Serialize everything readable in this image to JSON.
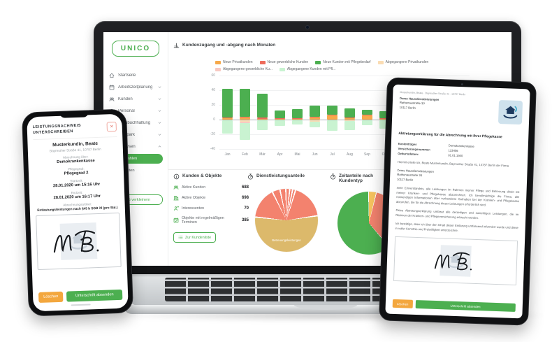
{
  "colors": {
    "green": "#4CAF50",
    "orange": "#F6A94B",
    "salmon": "#EE6B5B",
    "light_orange": "#FADCB3",
    "light_pink": "#F8C9C2",
    "light_green": "#C9F3D1",
    "tan": "#DCB96B",
    "pie_salmon": "#F3826E",
    "pie_orange": "#F6C35F",
    "amber": "#F3A73E"
  },
  "laptop": {
    "logo": "UNICO",
    "sidebar": {
      "items": [
        {
          "label": "Startseite",
          "icon": "home",
          "chevron": ""
        },
        {
          "label": "Arbeitszeitplanung",
          "icon": "calendar",
          "chevron": "down"
        },
        {
          "label": "Kunden",
          "icon": "users",
          "chevron": "down"
        },
        {
          "label": "Personal",
          "icon": "person",
          "chevron": "down"
        },
        {
          "label": "Lohnbuchhaltung",
          "icon": "calculator",
          "chevron": "down"
        },
        {
          "label": "Fuhrpark",
          "icon": "truck",
          "chevron": "down"
        },
        {
          "label": "Analysen",
          "icon": "chart",
          "chevron": "up"
        }
      ],
      "active_subitem": "Kundenzahlen",
      "second_subitem": "Fahrtkosten",
      "collapse_button": "Menü verkleinern"
    },
    "chart_header": "Kundenzugang und -abgang nach Monaten",
    "stats": {
      "title": "Kunden & Objekte",
      "rows": [
        {
          "icon": "users",
          "label": "Aktive Kunden",
          "value": "688"
        },
        {
          "icon": "building",
          "label": "Aktive Objekte",
          "value": "698"
        },
        {
          "icon": "person-plus",
          "label": "Interessenten",
          "value": "70"
        },
        {
          "icon": "calendar-check",
          "label": "Objekte mit regelmäßigen Terminen",
          "value": "385"
        }
      ],
      "button": "Zur Kundenliste"
    }
  },
  "chart_data": [
    {
      "type": "bar",
      "title": "Kundenzugang und -abgang nach Monaten",
      "categories": [
        "Jan",
        "Feb",
        "Mär",
        "Apr",
        "Mai",
        "Jun",
        "Jul",
        "Aug",
        "Sep",
        "Okt",
        "Nov",
        "Dez"
      ],
      "series": [
        {
          "name": "Neue Privatkunden",
          "color": "#F6A94B",
          "values": [
            2,
            3,
            1,
            1,
            1,
            3,
            6,
            2,
            6,
            1,
            1,
            1
          ]
        },
        {
          "name": "Neue gewerbliche Kunden",
          "color": "#EE6B5B",
          "values": [
            1,
            1,
            2,
            1,
            1,
            1,
            1,
            1,
            1,
            1,
            1,
            0
          ]
        },
        {
          "name": "Neue Kunden mit Pflegebedarf",
          "color": "#4CAF50",
          "values": [
            39,
            38,
            32,
            10,
            12,
            15,
            12,
            12,
            6,
            9,
            7,
            7
          ]
        },
        {
          "name": "Abgegangene Privatkunden",
          "color": "#FADCB3",
          "values": [
            0,
            -2,
            0,
            0,
            0,
            -2,
            0,
            -1,
            0,
            0,
            0,
            0
          ]
        },
        {
          "name": "Abgegangene gewerbliche Ku...",
          "color": "#F8C9C2",
          "values": [
            0,
            -2,
            0,
            0,
            0,
            0,
            0,
            0,
            0,
            0,
            0,
            0
          ]
        },
        {
          "name": "Abgegangene Kunden mit Pfl...",
          "color": "#C9F3D1",
          "values": [
            -18,
            -23,
            -13,
            -8,
            -6,
            -8,
            -14,
            -12,
            -7,
            -11,
            -6,
            -5
          ]
        }
      ],
      "ylim": [
        -40,
        60
      ],
      "yticks": [
        60,
        40,
        20,
        0,
        -20,
        -40
      ],
      "grid": true,
      "legend_position": "top"
    },
    {
      "type": "pie",
      "title": "Dienstleistungsanteile",
      "slices": [
        {
          "label": "",
          "value": 2,
          "color": "#F3826E"
        },
        {
          "label": "",
          "value": 1.5,
          "color": "#F3826E"
        },
        {
          "label": "",
          "value": 1.5,
          "color": "#F3826E"
        },
        {
          "label": "",
          "value": 18,
          "color": "#F3826E"
        },
        {
          "label": "Betreuungsleistungen",
          "value": 54,
          "color": "#DCB96B"
        },
        {
          "label": "",
          "value": 16,
          "color": "#F3826E"
        },
        {
          "label": "",
          "value": 4,
          "color": "#F3826E"
        },
        {
          "label": "",
          "value": 3,
          "color": "#F3826E"
        }
      ]
    },
    {
      "type": "pie",
      "title": "Zeitanteile nach Kundentyp",
      "slices": [
        {
          "label": "",
          "value": 4,
          "color": "#F6C35F"
        },
        {
          "label": "",
          "value": 35,
          "color": "#F3826E"
        },
        {
          "label": "",
          "value": 61,
          "color": "#4CAF50"
        }
      ]
    }
  ],
  "phone": {
    "title_line1": "LEISTUNGSNACHWEIS",
    "title_line2": "UNTERSCHREIBEN",
    "close_label": "×",
    "customer_name": "Musterkundin, Beate",
    "customer_address": "Bayreuther Straße 41, 10787 Berlin",
    "fields": [
      {
        "label": "Abrechnung über:",
        "value": "Demokrankenkasse",
        "small": false
      },
      {
        "label": "Pflegegrad:",
        "value": "Pflegegrad 2",
        "small": false
      },
      {
        "label": "Startzeit:",
        "value": "28.01.2020 um 15:16 Uhr",
        "small": false
      },
      {
        "label": "Endzeit:",
        "value": "28.01.2020 um 16:17 Uhr",
        "small": false
      },
      {
        "label": "Abrechnungsartikel:",
        "value": "Entlastungsleistungen nach §45 b SGB XI (pro Std.)",
        "small": true
      }
    ],
    "delete_button": "Löschen",
    "submit_button": "Unterschrift absenden"
  },
  "tablet": {
    "sender_line": "Musterkundin, Beate · Bayreuther Straße 41 · 10787 Berlin",
    "company_name": "Demo Hausdienstleistungen",
    "company_street": "Rathenaustraße 30",
    "company_city": "10117 Berlin",
    "heading": "Abtretungserklärung für die Abrechnung mit Ihrer Pflegekasse",
    "fields": [
      {
        "label": "Kostenträger:",
        "value": "Demokrankenkasse"
      },
      {
        "label": "Versicherungsnummer:",
        "value": "123456"
      },
      {
        "label": "Geburtsdatum:",
        "value": "01.01.1940"
      }
    ],
    "p_intro": "Hiermit erteile ich, Beate Musterkundin, Bayreuther Straße 41, 10787 Berlin der Firma",
    "p1": "mein Einverständnis, alle Leistungen im Rahmen meiner Pflege und Betreuung direkt mit meiner Kranken- und Pflegekasse abzurechnen. Ich bevollmächtige die Firma, alle notwendigen Informationen über vorhandene Guthaben bei der Kranken- und Pflegekasse abzurufen, die für die Abrechnung dieser Leistungen erforderlich sind.",
    "p2": "Diese Abtretungserklärung umfasst alle derzeitigen und zukünftigen Leistungen, die im Rahmen der Kranken- und Pflegeversicherung erbracht werden.",
    "p3": "Ich bestätige, dass ich über den Inhalt dieser Erklärung umfassend informiert wurde und diese in voller Kenntnis und Freiwilligkeit unterzeichne.",
    "delete_button": "Löschen",
    "submit_button": "Unterschrift absenden"
  }
}
